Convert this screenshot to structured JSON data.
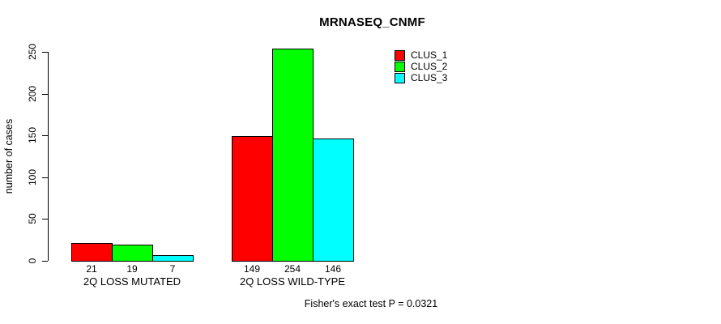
{
  "chart_data": {
    "type": "bar",
    "title": "MRNASEQ_CNMF",
    "ylabel": "number of cases",
    "xlabel": "",
    "yticks": [
      0,
      50,
      100,
      150,
      200,
      250
    ],
    "ylim": [
      0,
      262
    ],
    "grid": false,
    "legend_position": "top-right-inside",
    "categories": [
      "2Q LOSS MUTATED",
      "2Q LOSS WILD-TYPE"
    ],
    "series": [
      {
        "name": "CLUS_1",
        "color": "#ff0000"
      },
      {
        "name": "CLUS_2",
        "color": "#00ff00"
      },
      {
        "name": "CLUS_3",
        "color": "#00ffff"
      }
    ],
    "groups": [
      {
        "label": "2Q LOSS MUTATED",
        "values": [
          21,
          19,
          7
        ]
      },
      {
        "label": "2Q LOSS WILD-TYPE",
        "values": [
          149,
          254,
          146
        ]
      }
    ],
    "footnote": "Fisher's exact test P = 0.0321"
  }
}
